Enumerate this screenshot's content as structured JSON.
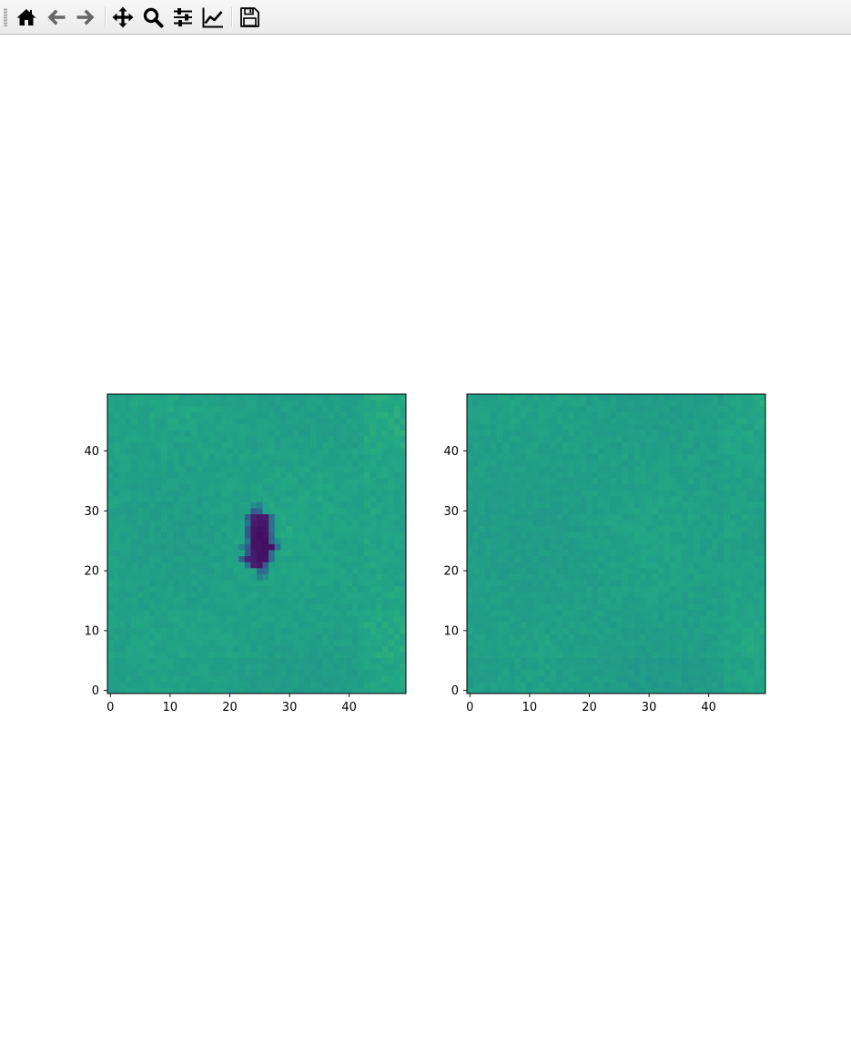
{
  "toolbar": {
    "buttons": [
      {
        "name": "home-icon",
        "tooltip": "Reset original view"
      },
      {
        "name": "back-arrow-icon",
        "tooltip": "Back to previous view"
      },
      {
        "name": "forward-arrow-icon",
        "tooltip": "Forward to next view"
      },
      {
        "name": "pan-move-icon",
        "tooltip": "Pan axes"
      },
      {
        "name": "zoom-magnifier-icon",
        "tooltip": "Zoom to rectangle"
      },
      {
        "name": "configure-subplots-icon",
        "tooltip": "Configure subplots"
      },
      {
        "name": "edit-axis-curve-icon",
        "tooltip": "Edit axis, curve and image parameters"
      },
      {
        "name": "save-floppy-icon",
        "tooltip": "Save the figure"
      }
    ]
  },
  "colors": {
    "background_green": "#40b872",
    "blob_dark": "#45085a",
    "blob_edge": "#2c818e"
  },
  "chart_data": [
    {
      "type": "heatmap",
      "colormap": "viridis",
      "grid_size": [
        50,
        50
      ],
      "xlim": [
        -0.5,
        49.5
      ],
      "ylim": [
        -0.5,
        49.5
      ],
      "xticks": [
        0,
        10,
        20,
        30,
        40
      ],
      "yticks": [
        0,
        10,
        20,
        30,
        40
      ],
      "xtick_labels": [
        "0",
        "10",
        "20",
        "30",
        "40"
      ],
      "ytick_labels": [
        "0",
        "10",
        "20",
        "30",
        "40"
      ],
      "background_level": 0.72,
      "feature": {
        "description": "dark low-value region",
        "x_range": [
          22,
          29
        ],
        "y_range": [
          20,
          30
        ],
        "center": [
          25.5,
          25
        ],
        "value": 0.02
      },
      "grid": false
    },
    {
      "type": "heatmap",
      "colormap": "viridis",
      "grid_size": [
        50,
        50
      ],
      "xlim": [
        -0.5,
        49.5
      ],
      "ylim": [
        -0.5,
        49.5
      ],
      "xticks": [
        0,
        10,
        20,
        30,
        40
      ],
      "yticks": [
        0,
        10,
        20,
        30,
        40
      ],
      "xtick_labels": [
        "0",
        "10",
        "20",
        "30",
        "40"
      ],
      "ytick_labels": [
        "0",
        "10",
        "20",
        "30",
        "40"
      ],
      "background_level": 0.71,
      "grid": false
    }
  ]
}
